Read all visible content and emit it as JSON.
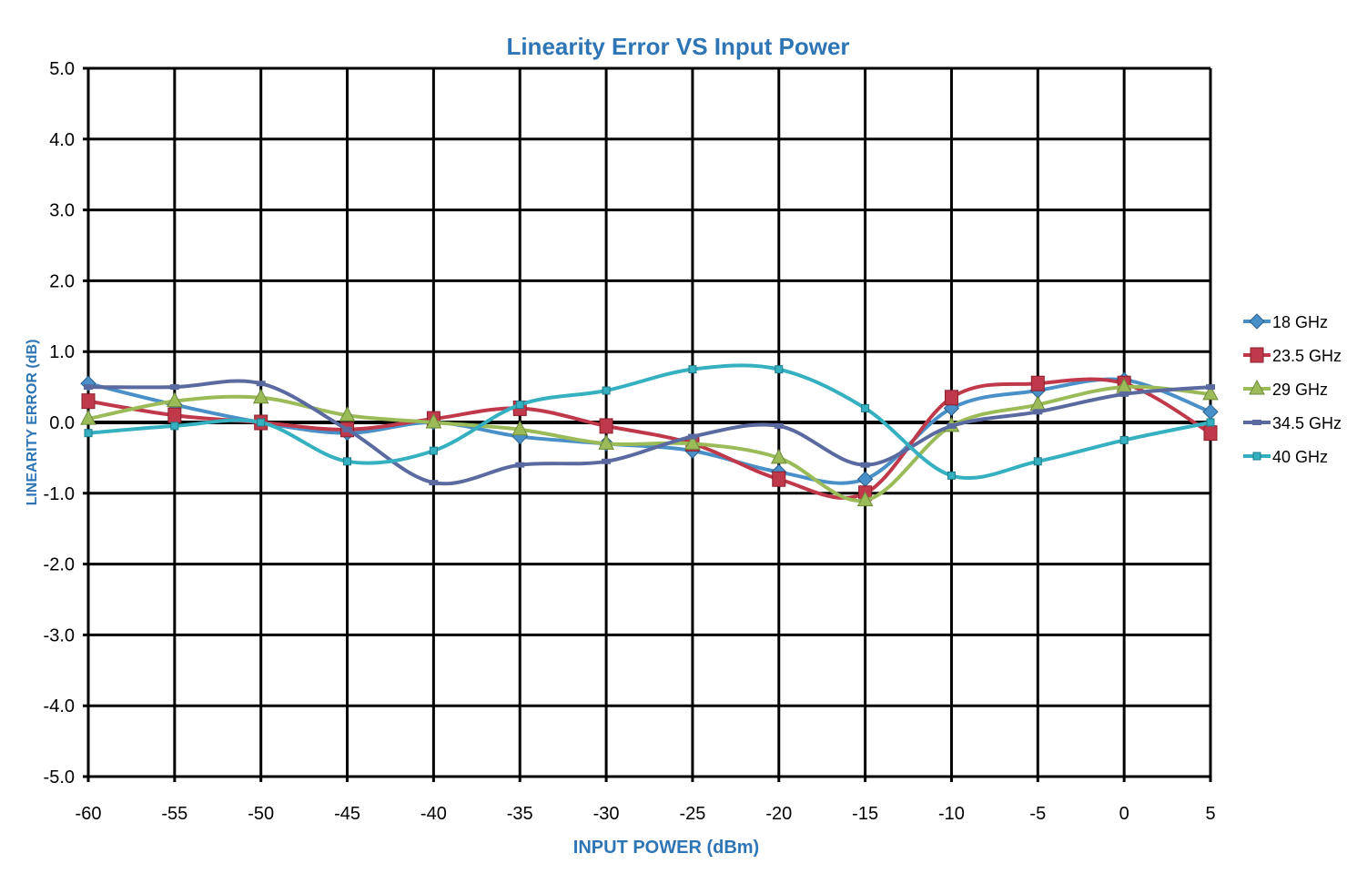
{
  "chart_data": {
    "type": "line",
    "title": "Linearity Error VS Input Power",
    "xlabel": "INPUT POWER (dBm)",
    "ylabel": "LINEARITY ERROR (dB)",
    "x": [
      -60,
      -55,
      -50,
      -45,
      -40,
      -35,
      -30,
      -25,
      -20,
      -15,
      -10,
      -5,
      0,
      5
    ],
    "xlim": [
      -60,
      5
    ],
    "ylim": [
      -5.0,
      5.0
    ],
    "x_ticks": [
      "-60",
      "-55",
      "-50",
      "-45",
      "-40",
      "-35",
      "-30",
      "-25",
      "-20",
      "-15",
      "-10",
      "-5",
      "0",
      "5"
    ],
    "y_ticks": [
      "5.0",
      "4.0",
      "3.0",
      "2.0",
      "1.0",
      "0.0",
      "-1.0",
      "-2.0",
      "-3.0",
      "-4.0",
      "-5.0"
    ],
    "grid": true,
    "legend_position": "right",
    "series": [
      {
        "name": "18 GHz",
        "color": "#4a90c8",
        "marker": "diamond",
        "values": [
          0.55,
          0.25,
          0.0,
          -0.15,
          0.0,
          -0.2,
          -0.3,
          -0.4,
          -0.7,
          -0.8,
          0.2,
          0.45,
          0.6,
          0.15
        ]
      },
      {
        "name": "23.5 GHz",
        "color": "#c0394b",
        "marker": "square",
        "values": [
          0.3,
          0.1,
          0.0,
          -0.1,
          0.05,
          0.2,
          -0.05,
          -0.3,
          -0.8,
          -1.0,
          0.35,
          0.55,
          0.55,
          -0.15
        ]
      },
      {
        "name": "29 GHz",
        "color": "#9bbb59",
        "marker": "triangle",
        "values": [
          0.05,
          0.3,
          0.35,
          0.1,
          0.0,
          -0.1,
          -0.3,
          -0.3,
          -0.5,
          -1.1,
          -0.05,
          0.25,
          0.5,
          0.4
        ]
      },
      {
        "name": "34.5 GHz",
        "color": "#5a6aa0",
        "marker": "dash",
        "values": [
          0.5,
          0.5,
          0.55,
          -0.1,
          -0.85,
          -0.6,
          -0.55,
          -0.2,
          -0.05,
          -0.6,
          -0.05,
          0.15,
          0.4,
          0.5
        ]
      },
      {
        "name": "40 GHz",
        "color": "#35b0c0",
        "marker": "square-small",
        "values": [
          -0.15,
          -0.05,
          0.0,
          -0.55,
          -0.4,
          0.25,
          0.45,
          0.75,
          0.75,
          0.2,
          -0.75,
          -0.55,
          -0.25,
          0.0
        ]
      }
    ]
  }
}
